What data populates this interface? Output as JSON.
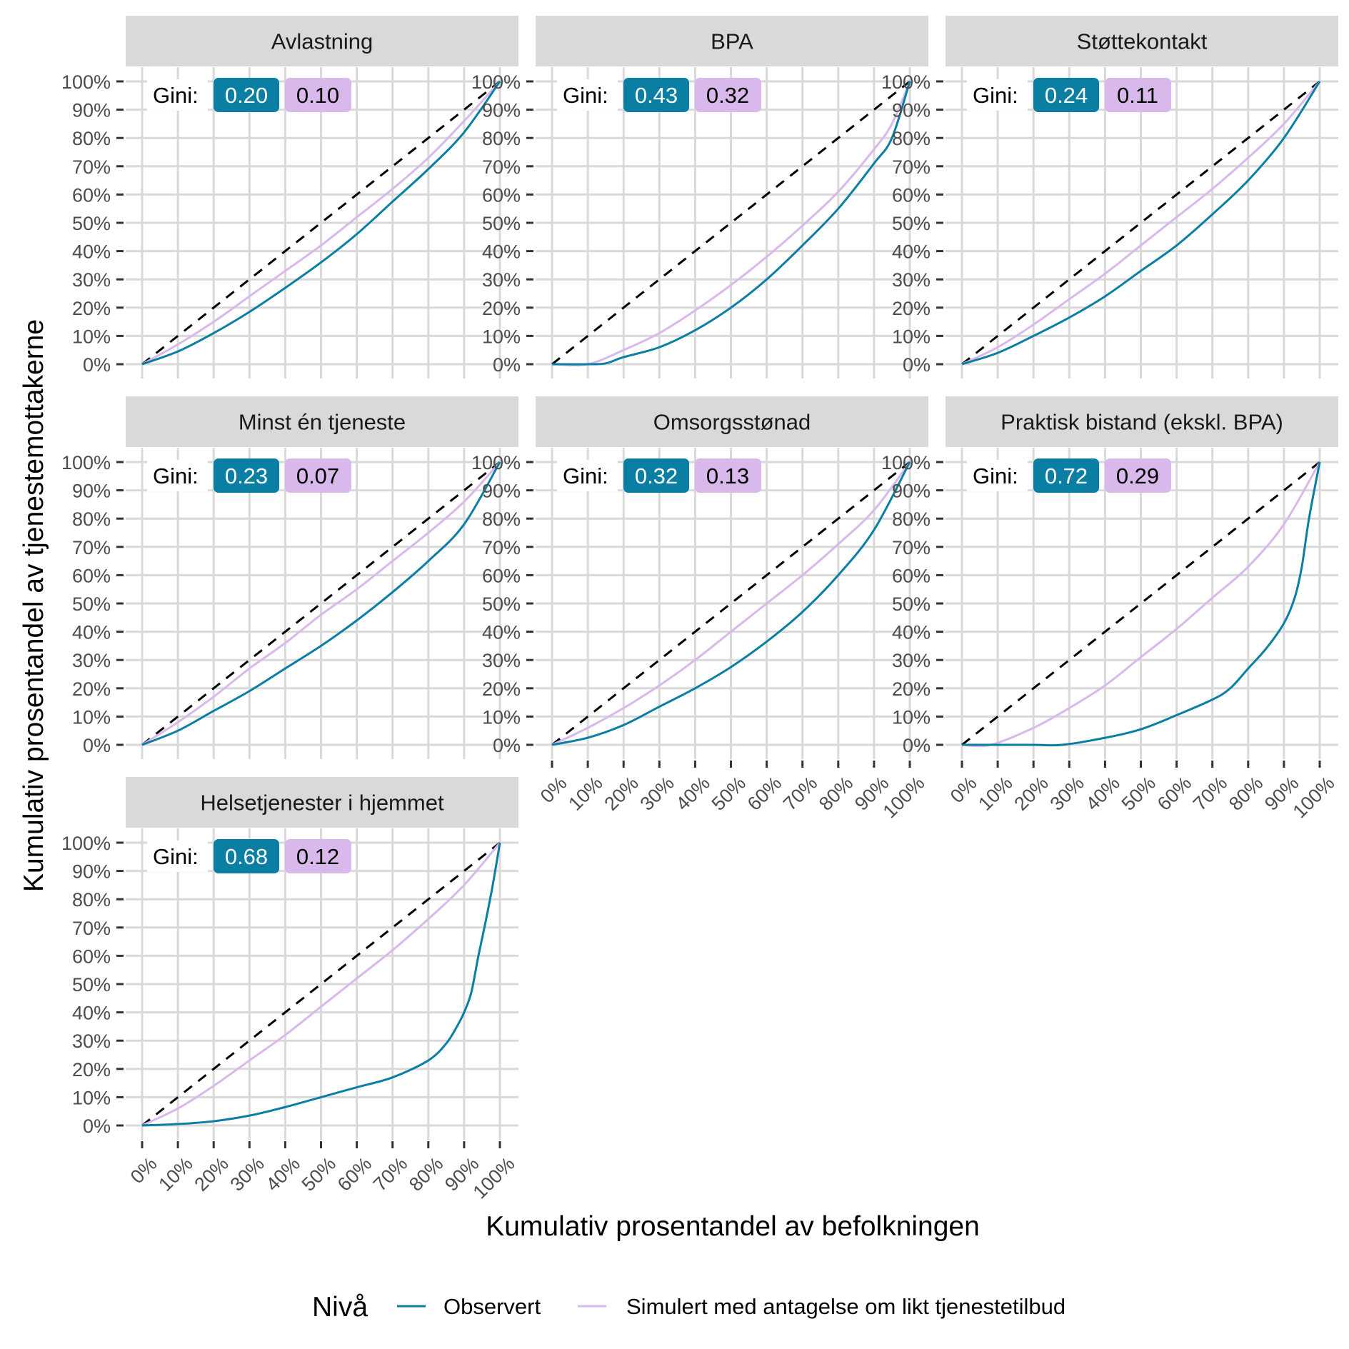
{
  "chart_data": {
    "type": "line",
    "xlabel": "Kumulativ prosentandel av befolkningen",
    "ylabel": "Kumulativ prosentandel av tjenestemottakerne",
    "xlim": [
      0,
      100
    ],
    "ylim": [
      0,
      100
    ],
    "ticks": [
      "0%",
      "10%",
      "20%",
      "30%",
      "40%",
      "50%",
      "60%",
      "70%",
      "80%",
      "90%",
      "100%"
    ],
    "grid": true,
    "legend": {
      "title": "Nivå",
      "position": "bottom",
      "entries": [
        {
          "label": "Observert",
          "color": "#0A7FA3"
        },
        {
          "label": "Simulert med antagelse om likt tjenestetilbud",
          "color": "#D9B8EC"
        }
      ]
    },
    "equality_line": {
      "style": "dashed",
      "color": "#000000"
    },
    "gini_label": "Gini:",
    "panels": [
      {
        "title": "Avlastning",
        "gini_observed": "0.20",
        "gini_simulated": "0.10",
        "observed": {
          "x": [
            0,
            10,
            20,
            30,
            40,
            50,
            60,
            70,
            80,
            90,
            100
          ],
          "y": [
            0,
            4.5,
            11,
            18.5,
            27,
            36,
            46,
            57.5,
            69,
            82,
            100
          ]
        },
        "simulated": {
          "x": [
            0,
            10,
            20,
            30,
            40,
            50,
            60,
            70,
            80,
            90,
            100
          ],
          "y": [
            0,
            7,
            15,
            24,
            33,
            42,
            52,
            62,
            73,
            86,
            100
          ]
        }
      },
      {
        "title": "BPA",
        "gini_observed": "0.43",
        "gini_simulated": "0.32",
        "observed": {
          "x": [
            0,
            10,
            15,
            20,
            30,
            40,
            50,
            60,
            70,
            80,
            90,
            95,
            100
          ],
          "y": [
            0,
            0,
            0.3,
            2.5,
            6,
            12,
            20,
            30,
            42,
            55,
            71,
            80,
            100
          ]
        },
        "simulated": {
          "x": [
            0,
            10,
            20,
            30,
            40,
            50,
            60,
            70,
            80,
            90,
            95,
            100
          ],
          "y": [
            0,
            0,
            5,
            11,
            19,
            28,
            38,
            49,
            61,
            76,
            85,
            100
          ]
        }
      },
      {
        "title": "Støttekontakt",
        "gini_observed": "0.24",
        "gini_simulated": "0.11",
        "observed": {
          "x": [
            0,
            10,
            20,
            30,
            40,
            50,
            60,
            70,
            80,
            90,
            100
          ],
          "y": [
            0,
            4,
            10,
            16.5,
            24,
            33,
            42,
            53,
            65,
            80,
            100
          ]
        },
        "simulated": {
          "x": [
            0,
            10,
            20,
            30,
            40,
            50,
            60,
            70,
            80,
            90,
            100
          ],
          "y": [
            0,
            6,
            14,
            23,
            32,
            42,
            52,
            62,
            73,
            85,
            100
          ]
        }
      },
      {
        "title": "Minst én tjeneste",
        "gini_observed": "0.23",
        "gini_simulated": "0.07",
        "observed": {
          "x": [
            0,
            10,
            20,
            30,
            40,
            50,
            60,
            70,
            80,
            90,
            100
          ],
          "y": [
            0,
            5,
            12,
            19,
            27,
            35,
            44,
            54,
            65,
            78,
            100
          ]
        },
        "simulated": {
          "x": [
            0,
            10,
            20,
            30,
            40,
            50,
            60,
            70,
            80,
            90,
            100
          ],
          "y": [
            0,
            8,
            17,
            27,
            36,
            46,
            55,
            65,
            75,
            86,
            100
          ]
        }
      },
      {
        "title": "Omsorgsstønad",
        "gini_observed": "0.32",
        "gini_simulated": "0.13",
        "observed": {
          "x": [
            0,
            10,
            20,
            30,
            40,
            50,
            60,
            70,
            80,
            90,
            100
          ],
          "y": [
            0,
            2.5,
            7,
            13.5,
            20,
            27.5,
            36.5,
            47,
            60,
            76,
            100
          ]
        },
        "simulated": {
          "x": [
            0,
            10,
            20,
            30,
            40,
            50,
            60,
            70,
            80,
            90,
            100
          ],
          "y": [
            0,
            6,
            13,
            21,
            30,
            40,
            50,
            60,
            71,
            83,
            100
          ]
        }
      },
      {
        "title": "Praktisk bistand (ekskl. BPA)",
        "gini_observed": "0.72",
        "gini_simulated": "0.29",
        "observed": {
          "x": [
            0,
            10,
            20,
            28,
            40,
            50,
            60,
            70,
            75,
            80,
            85,
            90,
            93,
            95,
            97,
            100
          ],
          "y": [
            0,
            0,
            0,
            0,
            2.5,
            5.5,
            10.5,
            16,
            20,
            27,
            34,
            43,
            52,
            63,
            80,
            100
          ]
        },
        "simulated": {
          "x": [
            0,
            8,
            20,
            30,
            40,
            50,
            60,
            70,
            80,
            90,
            100
          ],
          "y": [
            0,
            0,
            6,
            13,
            21,
            31,
            41,
            52,
            63,
            78,
            100
          ]
        }
      },
      {
        "title": "Helsetjenester i hjemmet",
        "gini_observed": "0.68",
        "gini_simulated": "0.12",
        "observed": {
          "x": [
            0,
            10,
            20,
            30,
            40,
            50,
            60,
            70,
            80,
            85,
            88,
            90,
            92,
            94,
            96,
            98,
            100
          ],
          "y": [
            0,
            0.5,
            1.5,
            3.5,
            6.5,
            10,
            13.5,
            17,
            23,
            29,
            35,
            40,
            47,
            60,
            72,
            85,
            100
          ]
        },
        "simulated": {
          "x": [
            0,
            10,
            20,
            30,
            40,
            50,
            60,
            70,
            80,
            90,
            100
          ],
          "y": [
            0,
            6,
            14,
            23,
            32,
            42,
            52,
            62,
            73,
            85,
            100
          ]
        }
      }
    ]
  }
}
